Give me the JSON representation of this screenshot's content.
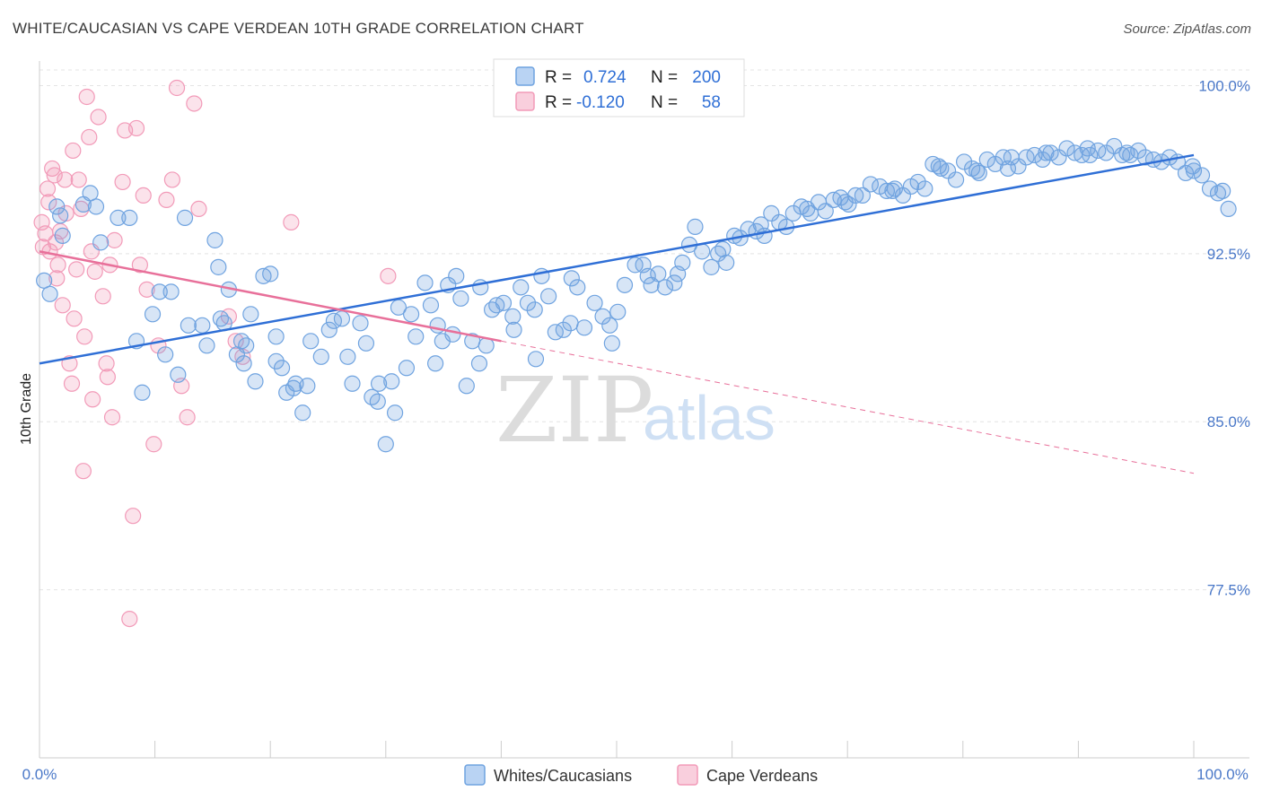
{
  "header": {
    "title": "WHITE/CAUCASIAN VS CAPE VERDEAN 10TH GRADE CORRELATION CHART",
    "source": "Source: ZipAtlas.com"
  },
  "watermark": {
    "zip": "ZIP",
    "atlas": "atlas"
  },
  "legend": {
    "r_label": "R =",
    "n_label": "N =",
    "rows": [
      {
        "r": "0.724",
        "n": "200",
        "color": "#6fa3e0"
      },
      {
        "r": "-0.120",
        "n": "58",
        "color": "#f29ab8"
      }
    ]
  },
  "bottom_legend": [
    {
      "label": "Whites/Caucasians",
      "color": "#6fa3e0"
    },
    {
      "label": "Cape Verdeans",
      "color": "#f29ab8"
    }
  ],
  "chart_data": {
    "type": "scatter",
    "title": "WHITE/CAUCASIAN VS CAPE VERDEAN 10TH GRADE CORRELATION CHART",
    "xlabel": "",
    "ylabel": "10th Grade",
    "xlim": [
      0,
      100
    ],
    "ylim": [
      70.0,
      100.7
    ],
    "x_tick_labels": [
      "0.0%",
      "100.0%"
    ],
    "y_ticks": [
      77.5,
      85.0,
      92.5,
      100.0
    ],
    "y_tick_labels": [
      "77.5%",
      "85.0%",
      "92.5%",
      "100.0%"
    ],
    "grid": true,
    "colors": {
      "blue": "#6fa3e0",
      "blue_line": "#2f6fd6",
      "pink": "#f29ab8",
      "pink_line": "#e8709a"
    },
    "series": [
      {
        "name": "Whites/Caucasians",
        "points": [
          [
            0.4,
            91.3
          ],
          [
            0.9,
            90.7
          ],
          [
            1.5,
            94.6
          ],
          [
            2.0,
            93.3
          ],
          [
            1.8,
            94.2
          ],
          [
            3.8,
            94.7
          ],
          [
            4.4,
            95.2
          ],
          [
            5.3,
            93.0
          ],
          [
            4.9,
            94.6
          ],
          [
            6.8,
            94.1
          ],
          [
            7.8,
            94.1
          ],
          [
            8.4,
            88.6
          ],
          [
            8.9,
            86.3
          ],
          [
            10.4,
            90.8
          ],
          [
            10.9,
            88.0
          ],
          [
            11.4,
            90.8
          ],
          [
            12.0,
            87.1
          ],
          [
            12.6,
            94.1
          ],
          [
            12.9,
            89.3
          ],
          [
            14.1,
            89.3
          ],
          [
            14.5,
            88.4
          ],
          [
            15.5,
            91.9
          ],
          [
            15.7,
            89.6
          ],
          [
            16.0,
            89.4
          ],
          [
            16.4,
            90.9
          ],
          [
            17.1,
            88.0
          ],
          [
            17.5,
            88.6
          ],
          [
            17.7,
            87.6
          ],
          [
            18.3,
            89.8
          ],
          [
            18.7,
            86.8
          ],
          [
            19.4,
            91.5
          ],
          [
            20.0,
            91.6
          ],
          [
            20.5,
            88.8
          ],
          [
            21.0,
            87.4
          ],
          [
            21.4,
            86.3
          ],
          [
            22.2,
            86.7
          ],
          [
            22.8,
            85.4
          ],
          [
            23.5,
            88.6
          ],
          [
            24.4,
            87.9
          ],
          [
            25.5,
            89.5
          ],
          [
            26.2,
            89.6
          ],
          [
            26.7,
            87.9
          ],
          [
            27.1,
            86.7
          ],
          [
            27.8,
            89.4
          ],
          [
            28.3,
            88.5
          ],
          [
            28.8,
            86.1
          ],
          [
            29.4,
            86.7
          ],
          [
            30.0,
            84.0
          ],
          [
            30.5,
            86.8
          ],
          [
            31.1,
            90.1
          ],
          [
            31.8,
            87.4
          ],
          [
            32.2,
            89.8
          ],
          [
            32.6,
            88.8
          ],
          [
            33.4,
            91.2
          ],
          [
            33.9,
            90.2
          ],
          [
            34.3,
            87.6
          ],
          [
            34.9,
            88.6
          ],
          [
            35.4,
            91.1
          ],
          [
            35.8,
            88.9
          ],
          [
            36.5,
            90.5
          ],
          [
            37.0,
            86.6
          ],
          [
            37.5,
            88.6
          ],
          [
            38.2,
            91.0
          ],
          [
            38.7,
            88.4
          ],
          [
            39.2,
            90.0
          ],
          [
            39.6,
            90.2
          ],
          [
            40.2,
            90.3
          ],
          [
            41.1,
            89.1
          ],
          [
            41.7,
            91.0
          ],
          [
            42.3,
            90.3
          ],
          [
            42.9,
            90.0
          ],
          [
            43.5,
            91.5
          ],
          [
            44.1,
            90.6
          ],
          [
            44.7,
            89.0
          ],
          [
            45.4,
            89.1
          ],
          [
            46.0,
            89.4
          ],
          [
            46.6,
            91.0
          ],
          [
            47.2,
            89.2
          ],
          [
            48.1,
            90.3
          ],
          [
            48.8,
            89.7
          ],
          [
            49.4,
            89.3
          ],
          [
            50.1,
            89.9
          ],
          [
            50.7,
            91.1
          ],
          [
            51.6,
            92.0
          ],
          [
            52.3,
            92.0
          ],
          [
            53.0,
            91.1
          ],
          [
            53.6,
            91.6
          ],
          [
            54.2,
            91.0
          ],
          [
            55.0,
            91.2
          ],
          [
            55.7,
            92.1
          ],
          [
            56.3,
            92.9
          ],
          [
            56.8,
            93.7
          ],
          [
            57.4,
            92.6
          ],
          [
            58.2,
            91.9
          ],
          [
            58.8,
            92.5
          ],
          [
            59.5,
            92.1
          ],
          [
            60.2,
            93.3
          ],
          [
            60.7,
            93.2
          ],
          [
            61.4,
            93.6
          ],
          [
            62.1,
            93.5
          ],
          [
            62.8,
            93.3
          ],
          [
            63.4,
            94.3
          ],
          [
            64.1,
            93.9
          ],
          [
            64.7,
            93.7
          ],
          [
            65.3,
            94.3
          ],
          [
            66.0,
            94.6
          ],
          [
            66.8,
            94.3
          ],
          [
            67.5,
            94.8
          ],
          [
            68.1,
            94.4
          ],
          [
            68.8,
            94.9
          ],
          [
            69.4,
            95.0
          ],
          [
            70.1,
            94.7
          ],
          [
            70.7,
            95.1
          ],
          [
            71.3,
            95.1
          ],
          [
            72.0,
            95.6
          ],
          [
            72.8,
            95.5
          ],
          [
            73.4,
            95.3
          ],
          [
            74.1,
            95.4
          ],
          [
            74.8,
            95.1
          ],
          [
            75.5,
            95.5
          ],
          [
            76.1,
            95.7
          ],
          [
            76.7,
            95.4
          ],
          [
            77.4,
            96.5
          ],
          [
            78.1,
            96.3
          ],
          [
            78.7,
            96.2
          ],
          [
            79.4,
            95.8
          ],
          [
            80.1,
            96.6
          ],
          [
            80.8,
            96.3
          ],
          [
            81.4,
            96.1
          ],
          [
            82.1,
            96.7
          ],
          [
            82.8,
            96.5
          ],
          [
            83.5,
            96.8
          ],
          [
            84.2,
            96.8
          ],
          [
            84.8,
            96.4
          ],
          [
            85.5,
            96.8
          ],
          [
            86.2,
            96.9
          ],
          [
            86.9,
            96.7
          ],
          [
            87.6,
            97.0
          ],
          [
            88.3,
            96.8
          ],
          [
            89.0,
            97.2
          ],
          [
            89.7,
            97.0
          ],
          [
            90.3,
            96.9
          ],
          [
            91.0,
            96.9
          ],
          [
            91.7,
            97.1
          ],
          [
            92.4,
            97.0
          ],
          [
            93.1,
            97.3
          ],
          [
            93.8,
            96.9
          ],
          [
            94.5,
            96.9
          ],
          [
            95.2,
            97.1
          ],
          [
            95.8,
            96.8
          ],
          [
            96.5,
            96.7
          ],
          [
            97.2,
            96.6
          ],
          [
            97.9,
            96.8
          ],
          [
            98.6,
            96.6
          ],
          [
            99.3,
            96.1
          ],
          [
            100.0,
            96.2
          ],
          [
            100.7,
            96.0
          ],
          [
            101.4,
            95.4
          ],
          [
            102.1,
            95.2
          ],
          [
            103.0,
            94.5
          ],
          [
            102.5,
            95.3
          ],
          [
            99.9,
            96.4
          ],
          [
            94.2,
            97.0
          ],
          [
            90.8,
            97.2
          ],
          [
            87.2,
            97.0
          ],
          [
            83.9,
            96.3
          ],
          [
            81.2,
            96.2
          ],
          [
            77.9,
            96.4
          ],
          [
            73.9,
            95.3
          ],
          [
            69.8,
            94.8
          ],
          [
            66.5,
            94.5
          ],
          [
            62.5,
            93.8
          ],
          [
            59.2,
            92.7
          ],
          [
            55.3,
            91.6
          ],
          [
            52.7,
            91.5
          ],
          [
            49.6,
            88.5
          ],
          [
            46.1,
            91.4
          ],
          [
            43.0,
            87.8
          ],
          [
            41.0,
            89.7
          ],
          [
            38.1,
            87.6
          ],
          [
            36.1,
            91.5
          ],
          [
            34.5,
            89.3
          ],
          [
            30.8,
            85.4
          ],
          [
            29.3,
            85.9
          ],
          [
            25.1,
            89.1
          ],
          [
            23.2,
            86.6
          ],
          [
            22.0,
            86.5
          ],
          [
            20.5,
            87.7
          ],
          [
            17.9,
            88.4
          ],
          [
            15.2,
            93.1
          ],
          [
            9.8,
            89.8
          ]
        ]
      },
      {
        "name": "Cape Verdeans",
        "points": [
          [
            0.3,
            92.8
          ],
          [
            0.5,
            93.4
          ],
          [
            0.7,
            95.4
          ],
          [
            0.9,
            92.6
          ],
          [
            1.1,
            96.3
          ],
          [
            1.5,
            91.4
          ],
          [
            1.6,
            92.0
          ],
          [
            1.8,
            93.5
          ],
          [
            2.2,
            95.8
          ],
          [
            2.3,
            94.3
          ],
          [
            2.6,
            87.6
          ],
          [
            2.9,
            97.1
          ],
          [
            3.0,
            89.6
          ],
          [
            3.2,
            91.8
          ],
          [
            3.4,
            95.8
          ],
          [
            3.6,
            94.5
          ],
          [
            3.8,
            82.8
          ],
          [
            4.1,
            99.5
          ],
          [
            4.3,
            97.7
          ],
          [
            4.6,
            86.0
          ],
          [
            4.8,
            91.7
          ],
          [
            5.1,
            98.6
          ],
          [
            5.5,
            90.6
          ],
          [
            5.8,
            87.6
          ],
          [
            6.1,
            92.0
          ],
          [
            6.5,
            93.1
          ],
          [
            7.2,
            95.7
          ],
          [
            7.4,
            98.0
          ],
          [
            7.8,
            76.2
          ],
          [
            8.1,
            80.8
          ],
          [
            8.4,
            98.1
          ],
          [
            8.7,
            92.0
          ],
          [
            9.0,
            95.1
          ],
          [
            9.3,
            90.9
          ],
          [
            9.9,
            84.0
          ],
          [
            10.3,
            88.4
          ],
          [
            11.0,
            94.9
          ],
          [
            11.5,
            95.8
          ],
          [
            11.9,
            99.9
          ],
          [
            12.3,
            86.6
          ],
          [
            12.8,
            85.2
          ],
          [
            13.4,
            99.2
          ],
          [
            13.8,
            94.5
          ],
          [
            16.4,
            89.7
          ],
          [
            17.0,
            88.6
          ],
          [
            17.6,
            87.9
          ],
          [
            21.8,
            93.9
          ],
          [
            30.2,
            91.5
          ],
          [
            6.3,
            85.2
          ],
          [
            4.5,
            92.6
          ],
          [
            1.4,
            93.0
          ],
          [
            2.0,
            90.2
          ],
          [
            2.8,
            86.7
          ],
          [
            3.9,
            88.8
          ],
          [
            0.2,
            93.9
          ],
          [
            0.8,
            94.8
          ],
          [
            1.3,
            96.0
          ],
          [
            5.9,
            87.0
          ]
        ]
      }
    ],
    "trend_lines": [
      {
        "series": "Whites/Caucasians",
        "from": [
          0,
          87.6
        ],
        "to": [
          100,
          96.9
        ]
      },
      {
        "series": "Cape Verdeans",
        "from": [
          0,
          92.6
        ],
        "to": [
          40,
          88.6
        ],
        "dashed_to": [
          100,
          82.7
        ]
      }
    ]
  }
}
